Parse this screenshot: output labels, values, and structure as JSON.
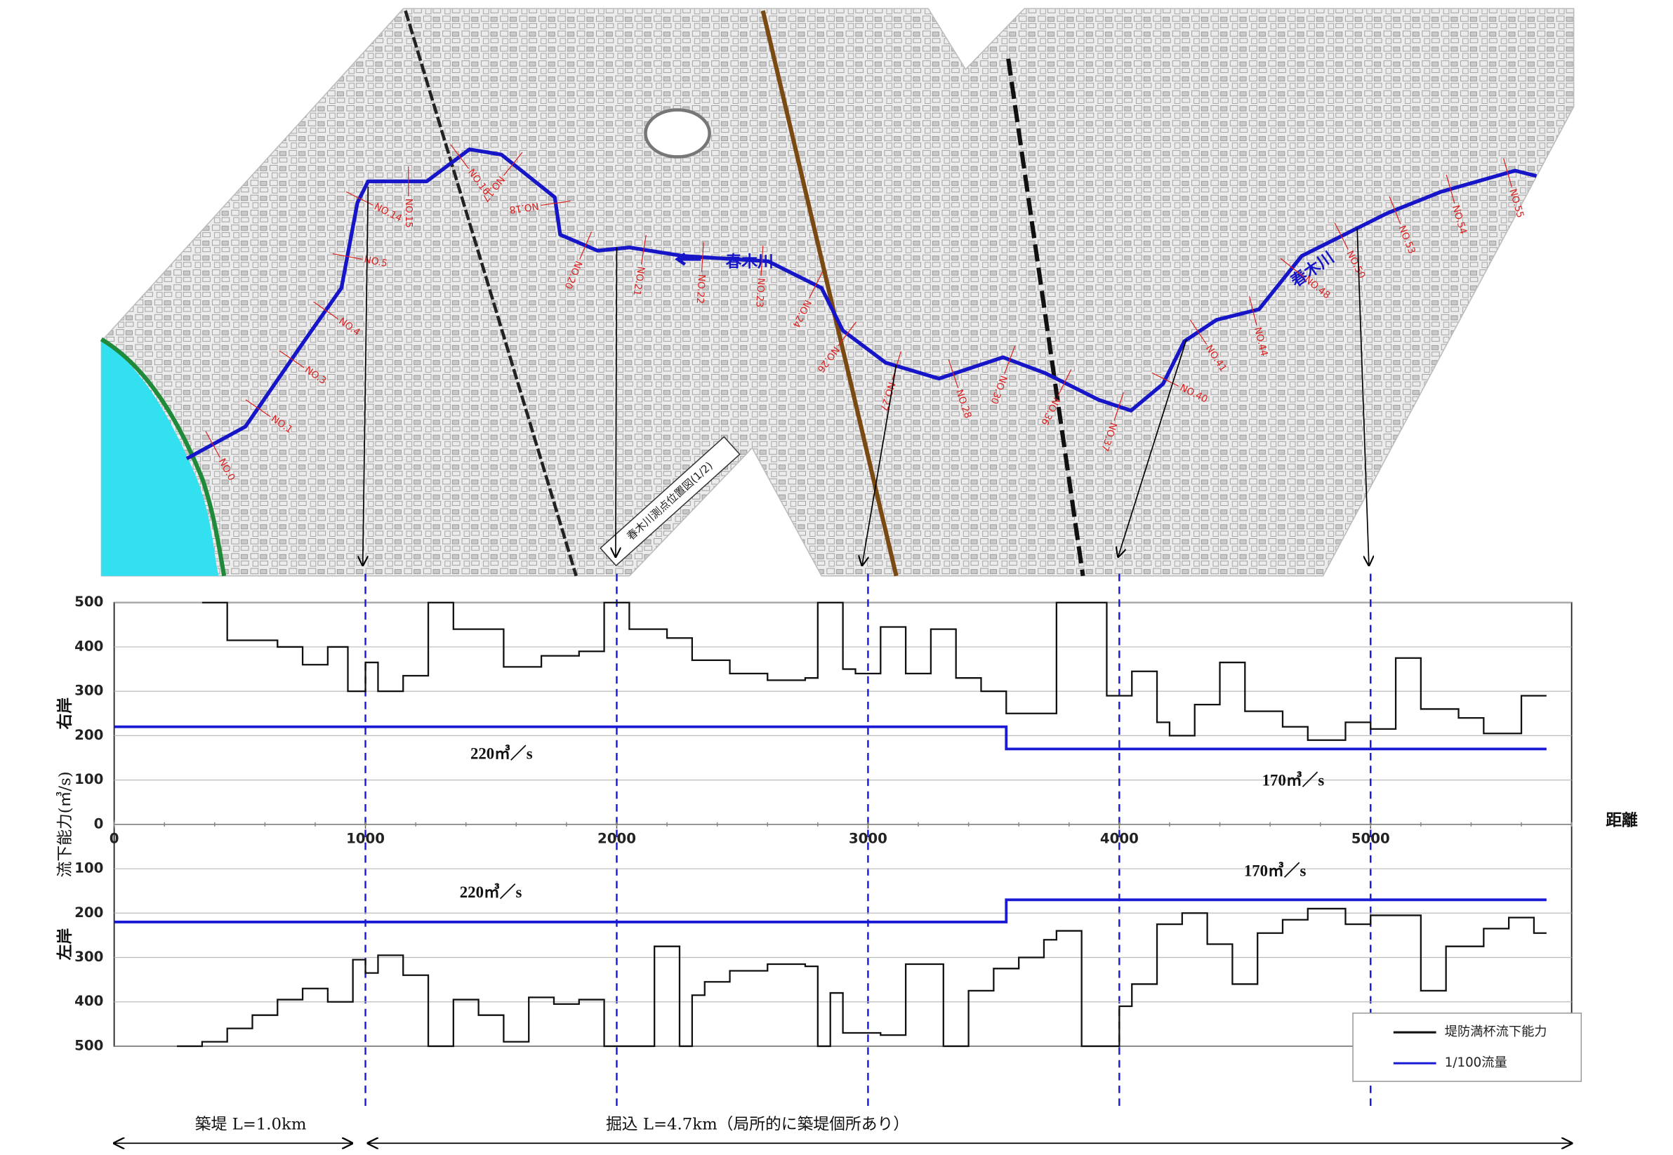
{
  "chart_data": [
    {
      "type": "line",
      "step": true,
      "panel_label": "右岸",
      "ylabel": "流下能力(㎥/s)",
      "xlabel": "距離",
      "xlim": [
        0,
        5800
      ],
      "xticks": [
        0,
        1000,
        2000,
        3000,
        4000,
        5000
      ],
      "ylim": [
        0,
        500
      ],
      "yticks": [
        0,
        100,
        200,
        300,
        400,
        500
      ],
      "grid": true,
      "series": [
        {
          "color": "#111111",
          "x": [
            350,
            450,
            650,
            750,
            850,
            930,
            1000,
            1050,
            1150,
            1250,
            1350,
            1550,
            1700,
            1850,
            1950,
            2050,
            2200,
            2300,
            2450,
            2600,
            2750,
            2800,
            2900,
            2950,
            3050,
            3150,
            3250,
            3350,
            3450,
            3550,
            3750,
            3950,
            4050,
            4150,
            4200,
            4300,
            4400,
            4500,
            4650,
            4750,
            4900,
            5000,
            5100,
            5200,
            5350,
            5450,
            5600,
            5700
          ],
          "values": [
            500,
            415,
            400,
            360,
            400,
            300,
            365,
            300,
            335,
            500,
            440,
            355,
            380,
            390,
            500,
            440,
            420,
            370,
            340,
            325,
            330,
            500,
            350,
            340,
            445,
            340,
            440,
            330,
            300,
            250,
            500,
            290,
            345,
            230,
            200,
            270,
            365,
            255,
            220,
            190,
            230,
            215,
            375,
            260,
            240,
            205,
            290,
            290
          ]
        },
        {
          "color": "#1a1ad6",
          "x": [
            0,
            3550,
            5700
          ],
          "values": [
            220,
            170,
            170
          ]
        }
      ],
      "annotations": [
        "220㎥／s",
        "170㎥／s"
      ]
    },
    {
      "type": "line",
      "step": true,
      "inverted": true,
      "panel_label": "左岸",
      "xlim": [
        0,
        5800
      ],
      "ylim": [
        0,
        500
      ],
      "yticks": [
        100,
        200,
        300,
        400,
        500
      ],
      "grid": true,
      "series": [
        {
          "name": "堤防満杯流下能力",
          "color": "#111111",
          "x": [
            250,
            350,
            450,
            550,
            650,
            750,
            850,
            950,
            1000,
            1050,
            1150,
            1250,
            1350,
            1450,
            1550,
            1650,
            1750,
            1850,
            1950,
            2150,
            2250,
            2300,
            2350,
            2450,
            2600,
            2750,
            2800,
            2850,
            2900,
            3050,
            3150,
            3300,
            3400,
            3500,
            3600,
            3700,
            3750,
            3850,
            4000,
            4050,
            4150,
            4250,
            4350,
            4450,
            4550,
            4650,
            4750,
            4900,
            5000,
            5100,
            5200,
            5300,
            5450,
            5550,
            5650,
            5700
          ],
          "values": [
            500,
            490,
            460,
            430,
            395,
            370,
            400,
            305,
            335,
            295,
            340,
            500,
            395,
            430,
            490,
            390,
            405,
            395,
            500,
            275,
            500,
            385,
            355,
            330,
            315,
            320,
            500,
            380,
            470,
            475,
            315,
            500,
            375,
            325,
            300,
            260,
            240,
            500,
            410,
            360,
            225,
            200,
            270,
            360,
            245,
            215,
            190,
            225,
            205,
            205,
            375,
            275,
            235,
            210,
            245,
            245
          ]
        },
        {
          "name": "1/100流量",
          "color": "#1a1ad6",
          "x": [
            0,
            3550,
            5700
          ],
          "values": [
            220,
            170,
            170
          ]
        }
      ],
      "legend": "lower right",
      "annotations": [
        "220㎥／s",
        "170㎥／s"
      ]
    }
  ],
  "map": {
    "title": "春木川測点位置図(1/2)",
    "river_labels": [
      "春木川",
      "春木川"
    ],
    "station_labels": [
      "NO.0",
      "NO.1",
      "NO.3",
      "NO.4",
      "NO.5",
      "NO.14",
      "NO.15",
      "NO.16",
      "NO.17",
      "NO.18",
      "NO.20",
      "NO.21",
      "NO.22",
      "NO.23",
      "NO.24",
      "NO.26",
      "NO.27",
      "NO.28",
      "NO.30",
      "NO.36",
      "NO.37",
      "NO.40",
      "NO.41",
      "NO.44",
      "NO.48",
      "NO.50",
      "NO.53",
      "NO.54",
      "NO.55"
    ]
  },
  "sections": {
    "embankment": "築堤 L=1.0km",
    "excavation": "掘込 L=4.7km（局所的に築堤個所あり）"
  }
}
